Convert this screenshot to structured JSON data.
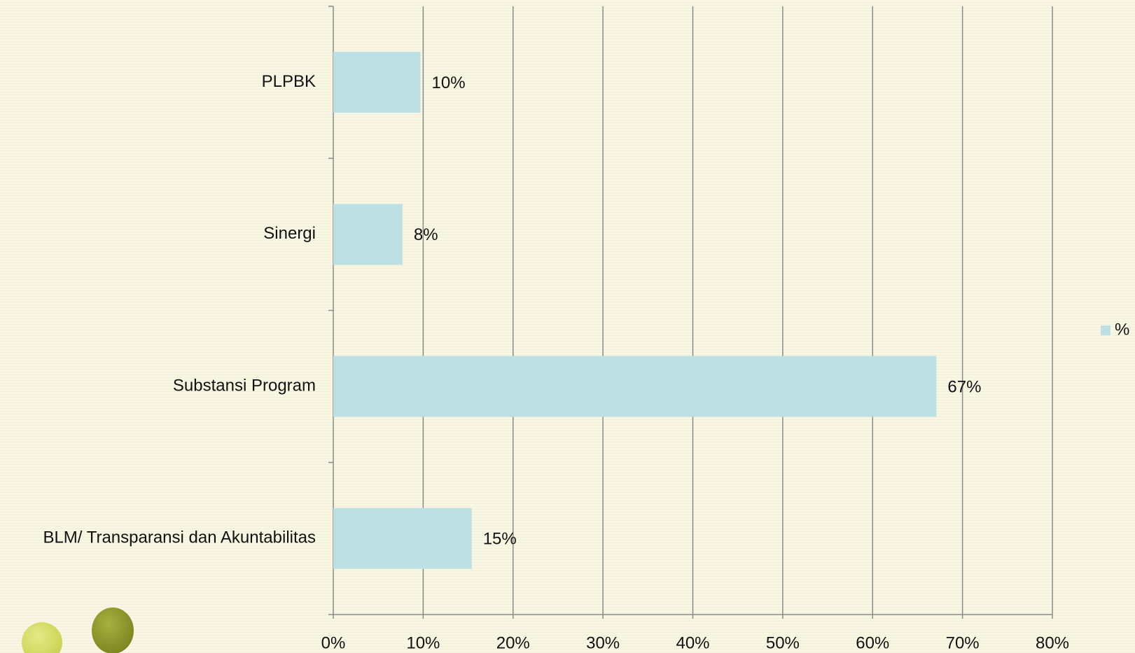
{
  "chart_data": {
    "type": "bar",
    "orientation": "horizontal",
    "categories": [
      "PLPBK",
      "Sinergi",
      "Substansi Program",
      "BLM/ Transparansi dan Akuntabilitas"
    ],
    "series": [
      {
        "name": "%",
        "color": "#bce0e3",
        "values": [
          9.7,
          7.7,
          67.1,
          15.4
        ],
        "value_labels": [
          "10%",
          "8%",
          "67%",
          "15%"
        ]
      }
    ],
    "xlim": [
      0,
      80
    ],
    "xticks": [
      {
        "value": 0,
        "label": "0%"
      },
      {
        "value": 10,
        "label": "10%"
      },
      {
        "value": 20,
        "label": "20%"
      },
      {
        "value": 30,
        "label": "30%"
      },
      {
        "value": 40,
        "label": "40%"
      },
      {
        "value": 50,
        "label": "50%"
      },
      {
        "value": 60,
        "label": "60%"
      },
      {
        "value": 70,
        "label": "70%"
      },
      {
        "value": 80,
        "label": "80%"
      }
    ],
    "grid": true,
    "legend": "right"
  }
}
